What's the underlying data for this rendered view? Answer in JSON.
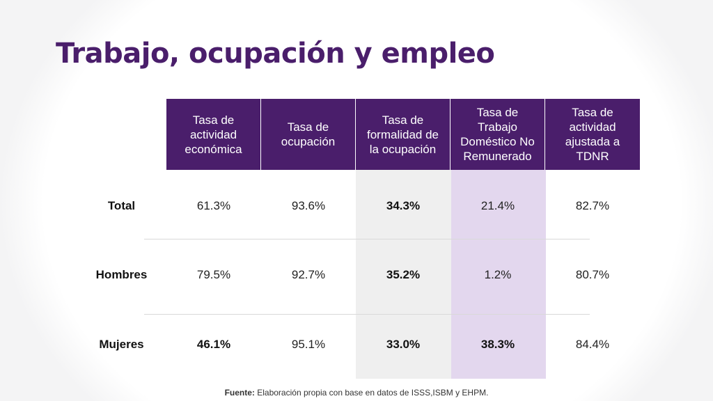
{
  "title": "Trabajo, ocupación y empleo",
  "table": {
    "headers": [
      "Tasa de\nactividad\neconómica",
      "Tasa de\nocupación",
      "Tasa de\nformalidad de\nla ocupación",
      "Tasa de\nTrabajo\nDoméstico No\nRemunerado",
      "Tasa de\nactividad\najustada a\nTDNR"
    ],
    "rows": [
      {
        "label": "Total",
        "values": [
          "61.3%",
          "93.6%",
          "34.3%",
          "21.4%",
          "82.7%"
        ]
      },
      {
        "label": "Hombres",
        "values": [
          "79.5%",
          "92.7%",
          "35.2%",
          "1.2%",
          "80.7%"
        ]
      },
      {
        "label": "Mujeres",
        "values": [
          "46.1%",
          "95.1%",
          "33.0%",
          "38.3%",
          "84.4%"
        ]
      }
    ]
  },
  "source": {
    "label": "Fuente:",
    "text": " Elaboración propia con base en datos de ISSS,ISBM y EHPM."
  },
  "colors": {
    "accent": "#4a1e6b",
    "highlight_gray": "#efefef",
    "highlight_lilac": "#e3d7ee"
  }
}
